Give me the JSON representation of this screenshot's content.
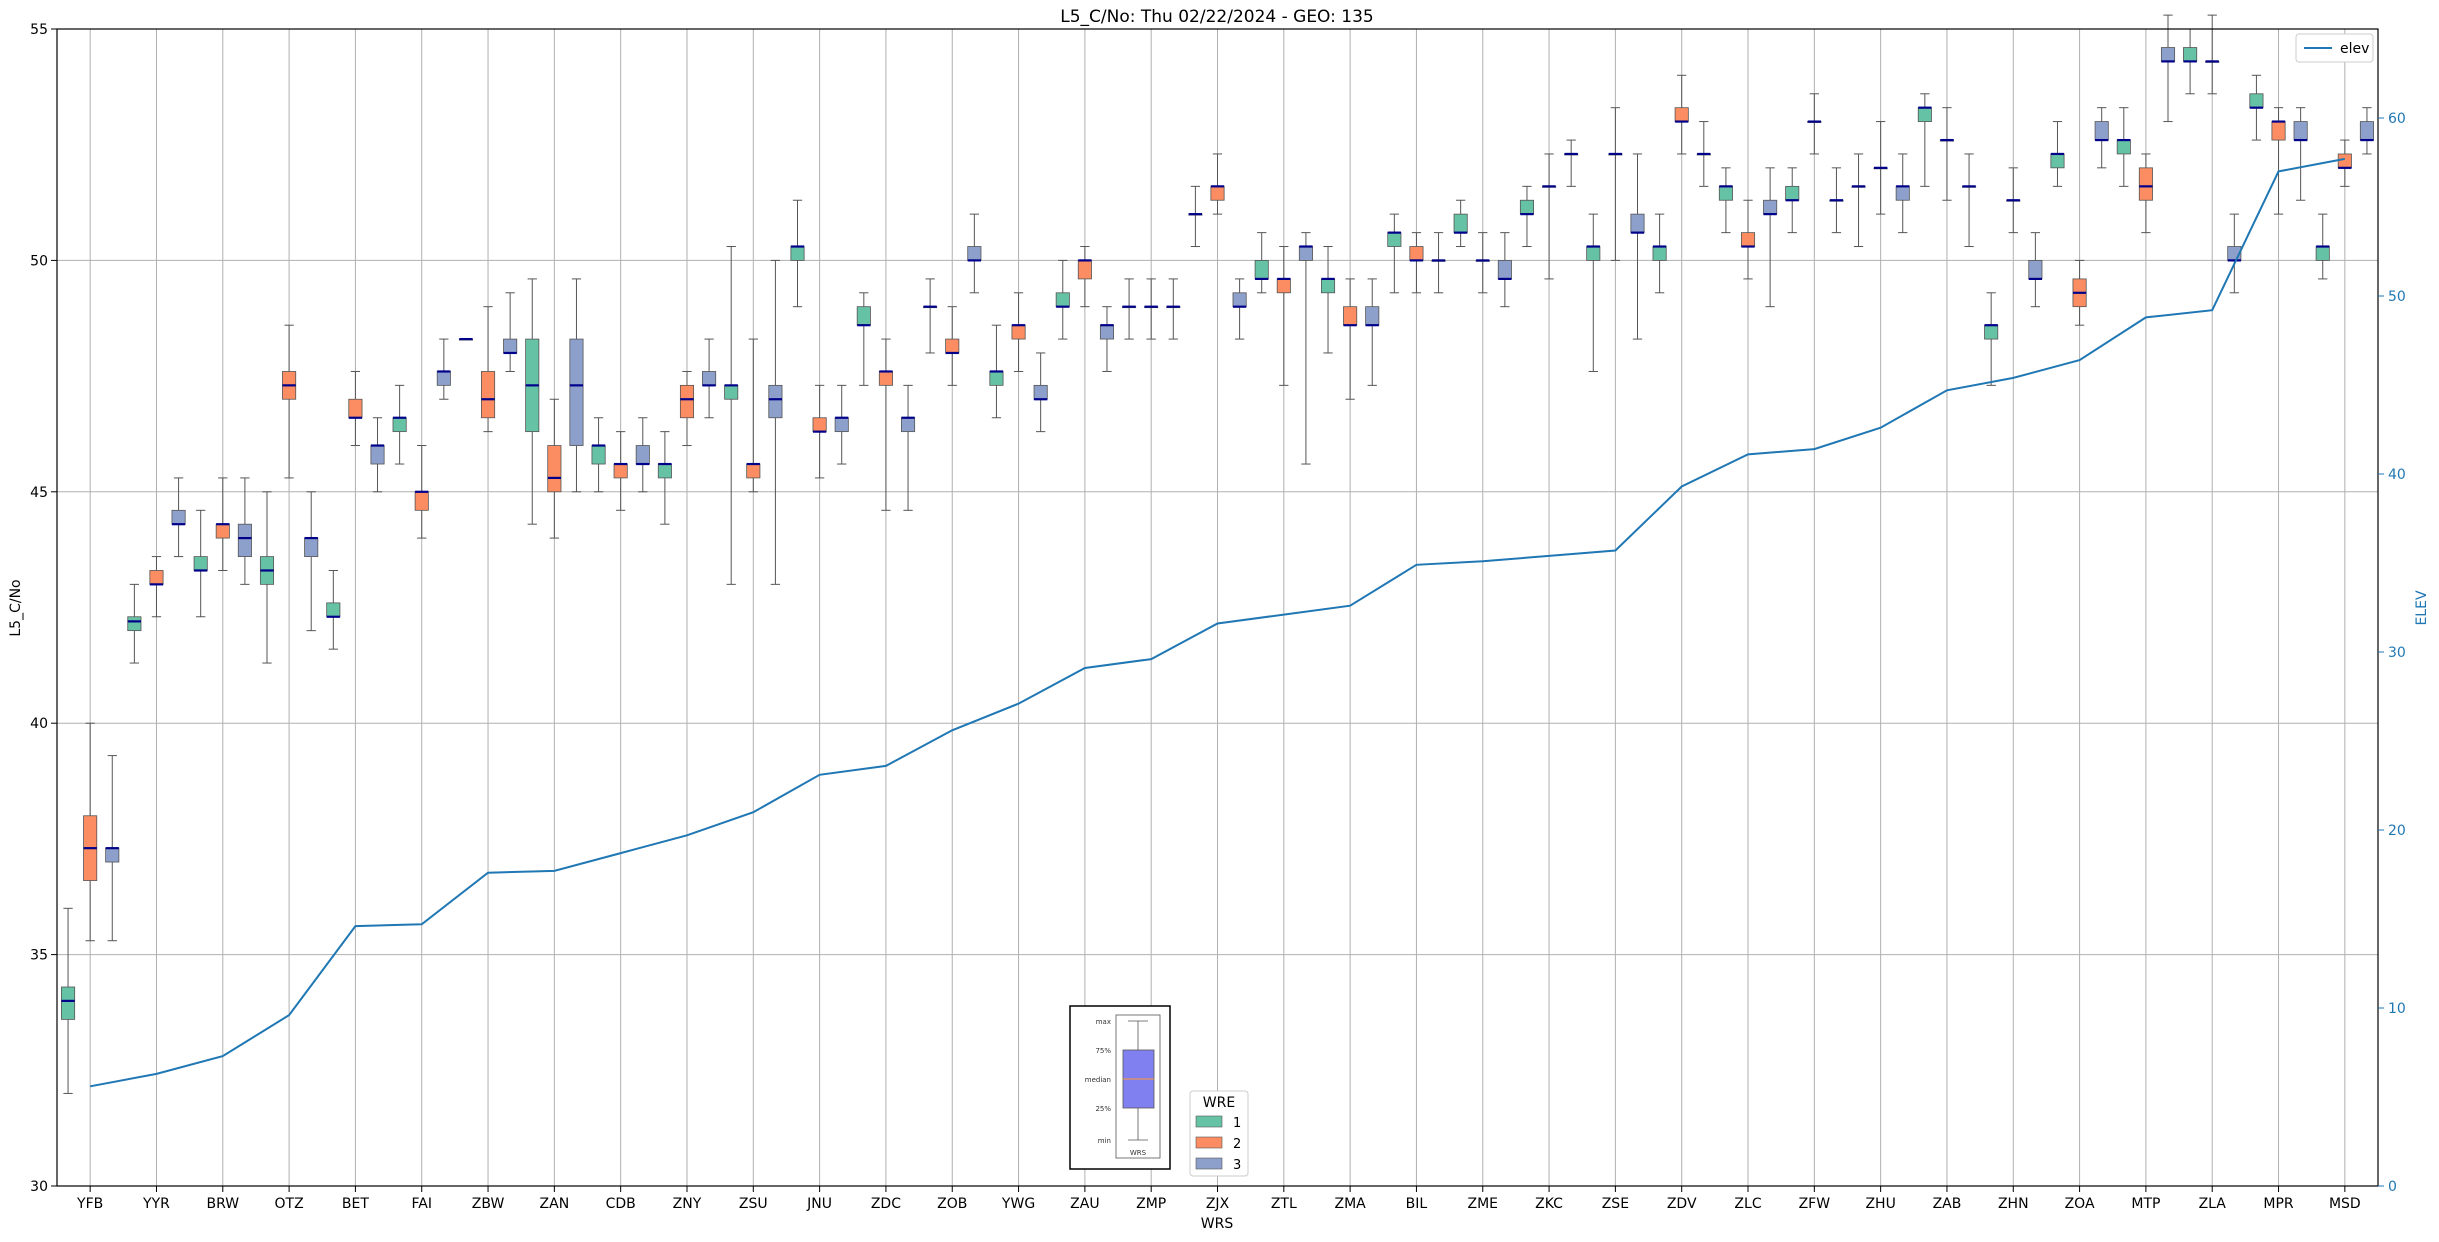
{
  "chart_data": {
    "type": "boxplot",
    "title": "L5_C/No: Thu 02/22/2024 - GEO: 135",
    "xlabel": "WRS",
    "ylabel": "L5_C/No",
    "y2label": "ELEV",
    "ylim": [
      30,
      55
    ],
    "y2lim": [
      0,
      65
    ],
    "yticks": [
      30,
      35,
      40,
      45,
      50,
      55
    ],
    "y2ticks": [
      0,
      10,
      20,
      30,
      40,
      50,
      60
    ],
    "grid": true,
    "categories": [
      "YFB",
      "YYR",
      "BRW",
      "OTZ",
      "BET",
      "FAI",
      "ZBW",
      "ZAN",
      "CDB",
      "ZNY",
      "ZSU",
      "JNU",
      "ZDC",
      "ZOB",
      "YWG",
      "ZAU",
      "ZMP",
      "ZJX",
      "ZTL",
      "ZMA",
      "BIL",
      "ZME",
      "ZKC",
      "ZSE",
      "ZDV",
      "ZLC",
      "ZFW",
      "ZHU",
      "ZAB",
      "ZHN",
      "ZOA",
      "MTP",
      "ZLA",
      "MPR",
      "MSD"
    ],
    "wre_legend": {
      "title": "WRE",
      "entries": [
        {
          "label": "1",
          "color": "#66c2a5"
        },
        {
          "label": "2",
          "color": "#fc8d62"
        },
        {
          "label": "3",
          "color": "#8da0cb"
        }
      ]
    },
    "elev_legend": {
      "label": "elev",
      "color": "#1f77b4"
    },
    "box_key": {
      "labels": [
        "max",
        "75%",
        "median",
        "25%",
        "min"
      ],
      "xlabel": "WRS"
    },
    "boxes": [
      [
        [
          32.0,
          33.6,
          34.0,
          34.3,
          36.0
        ],
        [
          35.3,
          36.6,
          37.3,
          38.0,
          40.0
        ],
        [
          35.3,
          37.0,
          37.3,
          37.3,
          39.3
        ]
      ],
      [
        [
          41.3,
          42.0,
          42.2,
          42.3,
          43.0
        ],
        [
          42.3,
          43.0,
          43.0,
          43.3,
          43.6
        ],
        [
          43.6,
          44.3,
          44.3,
          44.6,
          45.3
        ]
      ],
      [
        [
          42.3,
          43.3,
          43.3,
          43.6,
          44.6
        ],
        [
          43.3,
          44.0,
          44.3,
          44.3,
          45.3
        ],
        [
          43.0,
          43.6,
          44.0,
          44.3,
          45.3
        ]
      ],
      [
        [
          41.3,
          43.0,
          43.3,
          43.6,
          45.0
        ],
        [
          45.3,
          47.0,
          47.3,
          47.6,
          48.6
        ],
        [
          42.0,
          43.6,
          44.0,
          44.0,
          45.0
        ]
      ],
      [
        [
          41.6,
          42.3,
          42.3,
          42.6,
          43.3
        ],
        [
          46.0,
          46.6,
          46.6,
          47.0,
          47.6
        ],
        [
          45.0,
          45.6,
          46.0,
          46.0,
          46.6
        ]
      ],
      [
        [
          45.6,
          46.3,
          46.6,
          46.6,
          47.3
        ],
        [
          44.0,
          44.6,
          45.0,
          45.0,
          46.0
        ],
        [
          47.0,
          47.3,
          47.6,
          47.6,
          48.3
        ]
      ],
      [
        [
          48.3,
          48.3,
          48.3,
          48.3,
          48.3
        ],
        [
          46.3,
          46.6,
          47.0,
          47.6,
          49.0
        ],
        [
          47.6,
          48.0,
          48.0,
          48.3,
          49.3
        ]
      ],
      [
        [
          44.3,
          46.3,
          47.3,
          48.3,
          49.6
        ],
        [
          44.0,
          45.0,
          45.3,
          46.0,
          47.0
        ],
        [
          45.0,
          46.0,
          47.3,
          48.3,
          49.6
        ]
      ],
      [
        [
          45.0,
          45.6,
          46.0,
          46.0,
          46.6
        ],
        [
          44.6,
          45.3,
          45.6,
          45.6,
          46.3
        ],
        [
          45.0,
          45.6,
          45.6,
          46.0,
          46.6
        ]
      ],
      [
        [
          44.3,
          45.3,
          45.6,
          45.6,
          46.3
        ],
        [
          46.0,
          46.6,
          47.0,
          47.3,
          47.6
        ],
        [
          46.6,
          47.3,
          47.3,
          47.6,
          48.3
        ]
      ],
      [
        [
          43.0,
          47.0,
          47.3,
          47.3,
          50.3
        ],
        [
          45.0,
          45.3,
          45.6,
          45.6,
          48.3
        ],
        [
          43.0,
          46.6,
          47.0,
          47.3,
          50.0
        ]
      ],
      [
        [
          49.0,
          50.0,
          50.3,
          50.3,
          51.3
        ],
        [
          45.3,
          46.3,
          46.3,
          46.6,
          47.3
        ],
        [
          45.6,
          46.3,
          46.6,
          46.6,
          47.3
        ]
      ],
      [
        [
          47.3,
          48.6,
          48.6,
          49.0,
          49.3
        ],
        [
          44.6,
          47.3,
          47.6,
          47.6,
          48.3
        ],
        [
          44.6,
          46.3,
          46.6,
          46.6,
          47.3
        ]
      ],
      [
        [
          48.0,
          49.0,
          49.0,
          49.0,
          49.6
        ],
        [
          47.3,
          48.0,
          48.0,
          48.3,
          49.0
        ],
        [
          49.3,
          50.0,
          50.0,
          50.3,
          51.0
        ]
      ],
      [
        [
          46.6,
          47.3,
          47.6,
          47.6,
          48.6
        ],
        [
          47.6,
          48.3,
          48.6,
          48.6,
          49.3
        ],
        [
          46.3,
          47.0,
          47.0,
          47.3,
          48.0
        ]
      ],
      [
        [
          48.3,
          49.0,
          49.0,
          49.3,
          50.0
        ],
        [
          49.0,
          49.6,
          50.0,
          50.0,
          50.3
        ],
        [
          47.6,
          48.3,
          48.6,
          48.6,
          49.0
        ]
      ],
      [
        [
          48.3,
          49.0,
          49.0,
          49.0,
          49.6
        ],
        [
          48.3,
          49.0,
          49.0,
          49.0,
          49.6
        ],
        [
          48.3,
          49.0,
          49.0,
          49.0,
          49.6
        ]
      ],
      [
        [
          50.3,
          51.0,
          51.0,
          51.0,
          51.6
        ],
        [
          51.0,
          51.3,
          51.6,
          51.6,
          52.3
        ],
        [
          48.3,
          49.0,
          49.0,
          49.3,
          49.6
        ]
      ],
      [
        [
          49.3,
          49.6,
          49.6,
          50.0,
          50.6
        ],
        [
          47.3,
          49.3,
          49.6,
          49.6,
          50.3
        ],
        [
          45.6,
          50.0,
          50.3,
          50.3,
          50.6
        ]
      ],
      [
        [
          48.0,
          49.3,
          49.6,
          49.6,
          50.3
        ],
        [
          47.0,
          48.6,
          48.6,
          49.0,
          49.6
        ],
        [
          47.3,
          48.6,
          48.6,
          49.0,
          49.6
        ]
      ],
      [
        [
          49.3,
          50.3,
          50.6,
          50.6,
          51.0
        ],
        [
          49.3,
          50.0,
          50.0,
          50.3,
          50.6
        ],
        [
          49.3,
          50.0,
          50.0,
          50.0,
          50.6
        ]
      ],
      [
        [
          50.3,
          50.6,
          50.6,
          51.0,
          51.3
        ],
        [
          49.3,
          50.0,
          50.0,
          50.0,
          50.6
        ],
        [
          49.0,
          49.6,
          49.6,
          50.0,
          50.6
        ]
      ],
      [
        [
          50.3,
          51.0,
          51.0,
          51.3,
          51.6
        ],
        [
          49.6,
          51.6,
          51.6,
          51.6,
          52.3
        ],
        [
          51.6,
          52.3,
          52.3,
          52.3,
          52.6
        ]
      ],
      [
        [
          47.6,
          50.0,
          50.3,
          50.3,
          51.0
        ],
        [
          50.0,
          52.3,
          52.3,
          52.3,
          53.3
        ],
        [
          48.3,
          50.6,
          50.6,
          51.0,
          52.3
        ]
      ],
      [
        [
          49.3,
          50.0,
          50.3,
          50.3,
          51.0
        ],
        [
          52.3,
          53.0,
          53.0,
          53.3,
          54.0
        ],
        [
          51.6,
          52.3,
          52.3,
          52.3,
          53.0
        ]
      ],
      [
        [
          50.6,
          51.3,
          51.6,
          51.6,
          52.0
        ],
        [
          49.6,
          50.3,
          50.3,
          50.6,
          51.3
        ],
        [
          49.0,
          51.0,
          51.0,
          51.3,
          52.0
        ]
      ],
      [
        [
          50.6,
          51.3,
          51.3,
          51.6,
          52.0
        ],
        [
          52.3,
          53.0,
          53.0,
          53.0,
          53.6
        ],
        [
          50.6,
          51.3,
          51.3,
          51.3,
          52.0
        ]
      ],
      [
        [
          50.3,
          51.6,
          51.6,
          51.6,
          52.3
        ],
        [
          51.0,
          52.0,
          52.0,
          52.0,
          53.0
        ],
        [
          50.6,
          51.3,
          51.6,
          51.6,
          52.3
        ]
      ],
      [
        [
          51.6,
          53.0,
          53.3,
          53.3,
          53.6
        ],
        [
          51.3,
          52.6,
          52.6,
          52.6,
          53.3
        ],
        [
          50.3,
          51.6,
          51.6,
          51.6,
          52.3
        ]
      ],
      [
        [
          47.3,
          48.3,
          48.6,
          48.6,
          49.3
        ],
        [
          50.6,
          51.3,
          51.3,
          51.3,
          52.0
        ],
        [
          49.0,
          49.6,
          49.6,
          50.0,
          50.6
        ]
      ],
      [
        [
          51.6,
          52.0,
          52.3,
          52.3,
          53.0
        ],
        [
          48.6,
          49.0,
          49.3,
          49.6,
          50.0
        ],
        [
          52.0,
          52.6,
          52.6,
          53.0,
          53.3
        ]
      ],
      [
        [
          51.6,
          52.3,
          52.6,
          52.6,
          53.3
        ],
        [
          50.6,
          51.3,
          51.6,
          52.0,
          52.3
        ],
        [
          53.0,
          54.3,
          54.3,
          54.6,
          55.3
        ]
      ],
      [
        [
          53.6,
          54.3,
          54.3,
          54.6,
          55.0
        ],
        [
          53.6,
          54.3,
          54.3,
          54.3,
          55.3
        ],
        [
          49.3,
          50.0,
          50.0,
          50.3,
          51.0
        ]
      ],
      [
        [
          52.6,
          53.3,
          53.3,
          53.6,
          54.0
        ],
        [
          51.0,
          52.6,
          53.0,
          53.0,
          53.3
        ],
        [
          51.3,
          52.6,
          52.6,
          53.0,
          53.3
        ]
      ],
      [
        [
          49.6,
          50.0,
          50.3,
          50.3,
          51.0
        ],
        [
          51.6,
          52.0,
          52.0,
          52.3,
          52.6
        ],
        [
          52.3,
          52.6,
          52.6,
          53.0,
          53.3
        ]
      ]
    ],
    "elev": [
      5.6,
      6.3,
      7.3,
      9.6,
      14.6,
      14.7,
      17.6,
      17.7,
      18.7,
      19.7,
      21.0,
      23.1,
      23.6,
      25.6,
      27.1,
      29.1,
      29.6,
      31.6,
      32.1,
      32.6,
      34.9,
      35.1,
      35.4,
      35.7,
      39.3,
      41.1,
      41.4,
      42.6,
      44.7,
      45.4,
      46.4,
      48.8,
      49.2,
      57.0,
      57.7
    ]
  }
}
